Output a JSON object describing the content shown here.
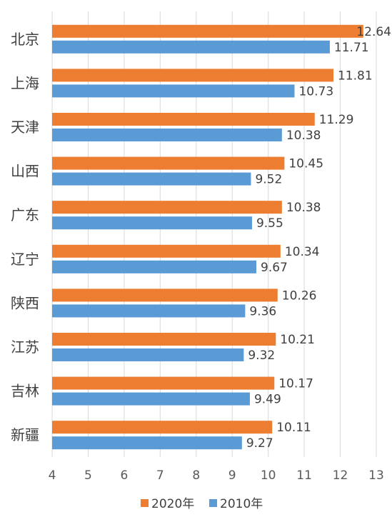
{
  "chart_data": {
    "type": "bar",
    "orientation": "horizontal",
    "categories": [
      "北京",
      "上海",
      "天津",
      "山西",
      "广东",
      "辽宁",
      "陕西",
      "江苏",
      "吉林",
      "新疆"
    ],
    "series": [
      {
        "name": "2020年",
        "color": "#ed7d31",
        "values": [
          12.64,
          11.81,
          11.29,
          10.45,
          10.38,
          10.34,
          10.26,
          10.21,
          10.17,
          10.11
        ]
      },
      {
        "name": "2010年",
        "color": "#5b9bd5",
        "values": [
          11.71,
          10.73,
          10.38,
          9.52,
          9.55,
          9.67,
          9.36,
          9.32,
          9.49,
          9.27
        ]
      }
    ],
    "xlim": [
      4,
      13
    ],
    "xticks": [
      4,
      5,
      6,
      7,
      8,
      9,
      10,
      11,
      12,
      13
    ],
    "grid": true,
    "legend": "bottom"
  }
}
